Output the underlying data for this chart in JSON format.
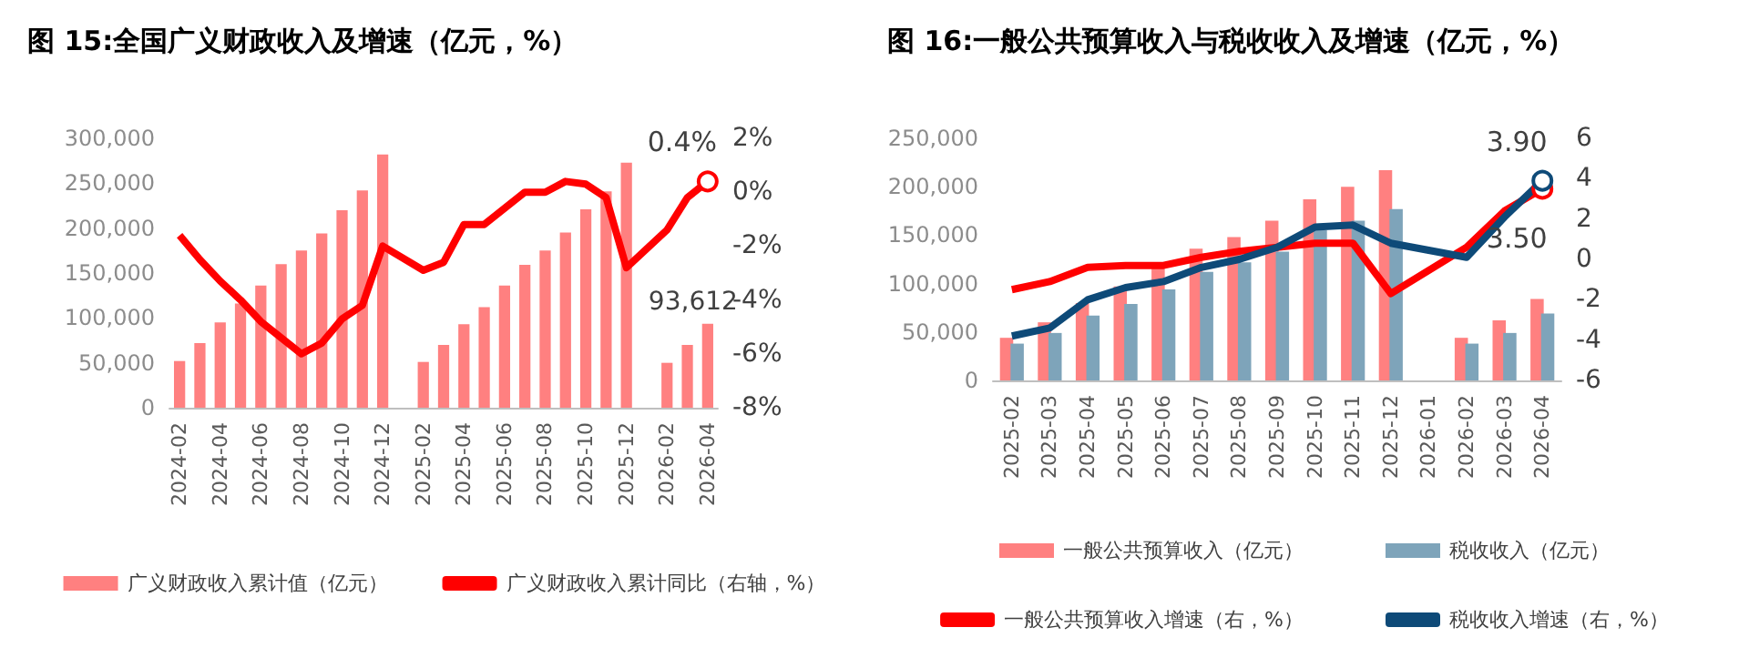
{
  "chart_data": [
    {
      "type": "bar",
      "title": "图 15:全国广义财政收入及增速（亿元，%）",
      "categories": [
        "2024-02",
        null,
        "2024-04",
        null,
        "2024-06",
        null,
        "2024-08",
        null,
        "2024-10",
        null,
        "2024-12",
        null,
        "2025-02",
        null,
        "2025-04",
        null,
        "2025-06",
        null,
        "2025-08",
        null,
        "2025-10",
        null,
        "2025-12",
        null,
        "2026-02",
        null,
        "2026-04"
      ],
      "series": [
        {
          "name": "广义财政收入累计值（亿元）",
          "color": "#ff8080",
          "values": [
            52000,
            72000,
            95000,
            116000,
            136000,
            160000,
            175000,
            194000,
            220000,
            242000,
            282000,
            null,
            51000,
            70000,
            93000,
            112000,
            136000,
            159000,
            175000,
            195000,
            221000,
            241000,
            273000,
            null,
            50000,
            70000,
            93612
          ],
          "value_labels": [
            null,
            null,
            null,
            null,
            null,
            null,
            null,
            null,
            null,
            null,
            null,
            null,
            null,
            null,
            null,
            null,
            null,
            null,
            null,
            null,
            null,
            null,
            null,
            null,
            null,
            null,
            "93,612"
          ]
        },
        {
          "name": "广义财政收入累计同比（右轴，%）",
          "type": "line",
          "axis": "y2",
          "color": "#ff0000",
          "values": [
            -1.6,
            -2.5,
            -3.3,
            -4.0,
            -4.8,
            -5.4,
            -6.0,
            -5.6,
            -4.7,
            -4.2,
            -2.0,
            null,
            -2.9,
            -2.6,
            -1.2,
            -1.2,
            -0.6,
            0.0,
            0.0,
            0.4,
            0.3,
            -0.2,
            -2.8,
            null,
            -1.4,
            -0.2,
            0.4
          ],
          "value_labels": [
            null,
            null,
            null,
            null,
            null,
            null,
            null,
            null,
            null,
            null,
            null,
            null,
            null,
            null,
            null,
            null,
            null,
            null,
            null,
            null,
            null,
            null,
            null,
            null,
            null,
            null,
            "0.4%"
          ]
        }
      ],
      "ylim": [
        0,
        300000
      ],
      "yticks": [
        {
          "value": 0,
          "label": "0"
        },
        {
          "value": 50000,
          "label": "50,000"
        },
        {
          "value": 100000,
          "label": "100,000"
        },
        {
          "value": 150000,
          "label": "150,000"
        },
        {
          "value": 200000,
          "label": "200,000"
        },
        {
          "value": 250000,
          "label": "250,000"
        },
        {
          "value": 300000,
          "label": "300,000"
        }
      ],
      "y2lim": [
        -8,
        2
      ],
      "y2ticks": [
        {
          "value": -8,
          "label": "-8%"
        },
        {
          "value": -6,
          "label": "-6%"
        },
        {
          "value": -4,
          "label": "-4%"
        },
        {
          "value": -2,
          "label": "-2%"
        },
        {
          "value": 0,
          "label": "0%"
        },
        {
          "value": 2,
          "label": "2%"
        }
      ],
      "legend": "bottom",
      "grid": false
    },
    {
      "type": "bar",
      "title": "图 16:一般公共预算收入与税收收入及增速（亿元，%）",
      "categories": [
        "2025-02",
        "2025-03",
        "2025-04",
        "2025-05",
        "2025-06",
        "2025-07",
        "2025-08",
        "2025-09",
        "2025-10",
        "2025-11",
        "2025-12",
        "2026-01",
        "2026-02",
        "2026-03",
        "2026-04"
      ],
      "series": [
        {
          "name": "一般公共预算收入（亿元）",
          "color": "#ff8080",
          "values": [
            44000,
            60000,
            80000,
            97000,
            117000,
            136000,
            148000,
            165000,
            187000,
            200000,
            217000,
            null,
            44000,
            62000,
            84000
          ]
        },
        {
          "name": "税收收入（亿元）",
          "color": "#7ea4ba",
          "values": [
            38000,
            49000,
            67000,
            79000,
            94000,
            112000,
            122000,
            133000,
            155000,
            165000,
            177000,
            null,
            38000,
            49000,
            69000
          ]
        },
        {
          "name": "一般公共预算收入增速（右，%）",
          "type": "line",
          "axis": "y2",
          "color": "#ff0000",
          "values": [
            -1.5,
            -1.1,
            -0.4,
            -0.3,
            -0.3,
            0.1,
            0.4,
            0.6,
            0.8,
            0.8,
            -1.7,
            null,
            0.6,
            2.4,
            3.5
          ],
          "value_labels": [
            null,
            null,
            null,
            null,
            null,
            null,
            null,
            null,
            null,
            null,
            null,
            null,
            null,
            null,
            "3.50"
          ]
        },
        {
          "name": "税收收入增速（右，%）",
          "type": "line",
          "axis": "y2",
          "color": "#0e4a78",
          "values": [
            -3.8,
            -3.4,
            -2.0,
            -1.4,
            -1.1,
            -0.4,
            0.0,
            0.6,
            1.6,
            1.7,
            0.8,
            null,
            0.1,
            2.1,
            3.9
          ],
          "value_labels": [
            null,
            null,
            null,
            null,
            null,
            null,
            null,
            null,
            null,
            null,
            null,
            null,
            null,
            null,
            "3.90"
          ]
        }
      ],
      "ylim": [
        0,
        250000
      ],
      "yticks": [
        {
          "value": 0,
          "label": "0"
        },
        {
          "value": 50000,
          "label": "50,000"
        },
        {
          "value": 100000,
          "label": "100,000"
        },
        {
          "value": 150000,
          "label": "150,000"
        },
        {
          "value": 200000,
          "label": "200,000"
        },
        {
          "value": 250000,
          "label": "250,000"
        }
      ],
      "y2lim": [
        -6,
        6
      ],
      "y2ticks": [
        -6,
        -4,
        -2,
        0,
        2,
        4,
        6
      ],
      "legend": "bottom",
      "grid": false
    }
  ]
}
